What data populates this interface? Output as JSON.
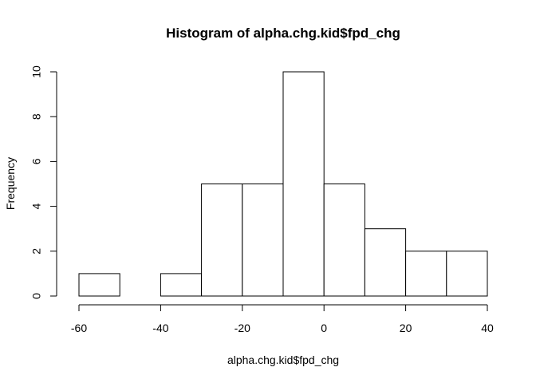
{
  "chart_data": {
    "type": "bar",
    "title": "Histogram of alpha.chg.kid$fpd_chg",
    "xlabel": "alpha.chg.kid$fpd_chg",
    "ylabel": "Frequency",
    "bins": [
      {
        "start": -60,
        "end": -50,
        "count": 1
      },
      {
        "start": -50,
        "end": -40,
        "count": 0
      },
      {
        "start": -40,
        "end": -30,
        "count": 1
      },
      {
        "start": -30,
        "end": -20,
        "count": 5
      },
      {
        "start": -20,
        "end": -10,
        "count": 5
      },
      {
        "start": -10,
        "end": 0,
        "count": 10
      },
      {
        "start": 0,
        "end": 10,
        "count": 5
      },
      {
        "start": 10,
        "end": 20,
        "count": 3
      },
      {
        "start": 20,
        "end": 30,
        "count": 2
      },
      {
        "start": 30,
        "end": 40,
        "count": 2
      }
    ],
    "xlim": [
      -60,
      40
    ],
    "ylim": [
      0,
      10
    ],
    "x_ticks": [
      -60,
      -40,
      -20,
      0,
      20,
      40
    ],
    "y_ticks": [
      0,
      2,
      4,
      6,
      8,
      10
    ],
    "grid": false,
    "colors": {
      "bar_fill": "#ffffff",
      "bar_stroke": "#000000",
      "axis": "#000000",
      "background": "#ffffff"
    }
  }
}
